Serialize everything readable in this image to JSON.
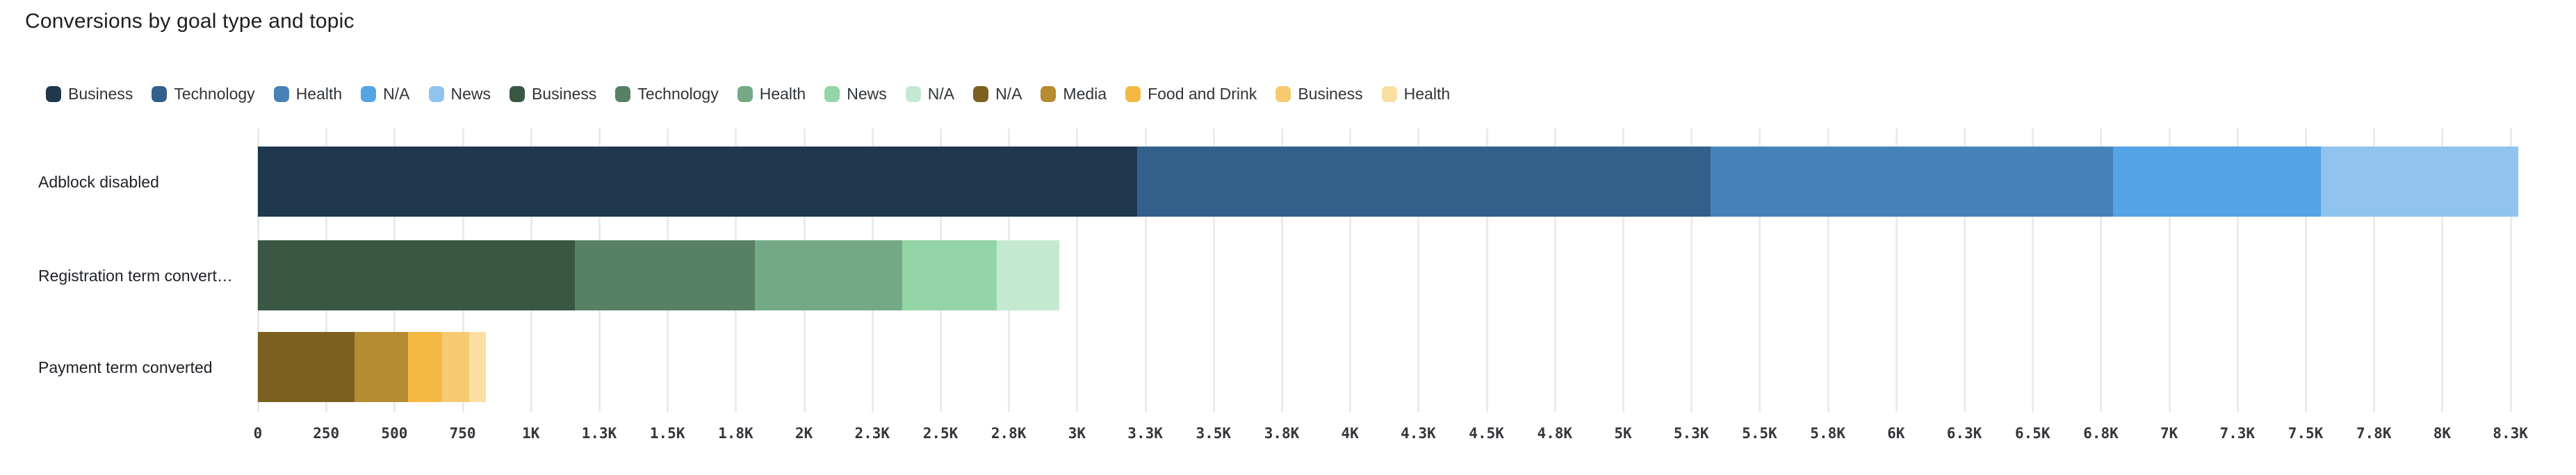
{
  "title": "Conversions by goal type and topic",
  "legend": [
    {
      "label": "Business",
      "color": "#1F384E"
    },
    {
      "label": "Technology",
      "color": "#33608A"
    },
    {
      "label": "Health",
      "color": "#4682B8"
    },
    {
      "label": "N/A",
      "color": "#55A4E6"
    },
    {
      "label": "News",
      "color": "#90C4EF"
    },
    {
      "label": "Business",
      "color": "#3A5744"
    },
    {
      "label": "Technology",
      "color": "#588065"
    },
    {
      "label": "Health",
      "color": "#73AA85"
    },
    {
      "label": "News",
      "color": "#94D5A8"
    },
    {
      "label": "N/A",
      "color": "#C5E8D1"
    },
    {
      "label": "N/A",
      "color": "#7B6020"
    },
    {
      "label": "Media",
      "color": "#B68C33"
    },
    {
      "label": "Food and Drink",
      "color": "#F4B843"
    },
    {
      "label": "Business",
      "color": "#F7CA71"
    },
    {
      "label": "Health",
      "color": "#FADFA0"
    }
  ],
  "chart_data": {
    "type": "bar",
    "orientation": "horizontal",
    "stacked": true,
    "title": "Conversions by goal type and topic",
    "categories": [
      "Adblock disabled",
      "Registration term convert…",
      "Payment term converted"
    ],
    "rows": [
      {
        "label": "Adblock disabled",
        "segments": [
          {
            "topic": "Business",
            "value": 3220,
            "color": "#1F384E"
          },
          {
            "topic": "Technology",
            "value": 2100,
            "color": "#33608A"
          },
          {
            "topic": "Health",
            "value": 1475,
            "color": "#4682B8"
          },
          {
            "topic": "N/A",
            "value": 760,
            "color": "#55A4E6"
          },
          {
            "topic": "News",
            "value": 725,
            "color": "#90C4EF"
          }
        ]
      },
      {
        "label": "Registration term convert…",
        "segments": [
          {
            "topic": "Business",
            "value": 1160,
            "color": "#3A5744"
          },
          {
            "topic": "Technology",
            "value": 660,
            "color": "#588065"
          },
          {
            "topic": "Health",
            "value": 540,
            "color": "#73AA85"
          },
          {
            "topic": "News",
            "value": 345,
            "color": "#94D5A8"
          },
          {
            "topic": "N/A",
            "value": 230,
            "color": "#C5E8D1"
          }
        ]
      },
      {
        "label": "Payment term converted",
        "segments": [
          {
            "topic": "N/A",
            "value": 355,
            "color": "#7B6020"
          },
          {
            "topic": "Media",
            "value": 195,
            "color": "#B68C33"
          },
          {
            "topic": "Food and Drink",
            "value": 125,
            "color": "#F4B843"
          },
          {
            "topic": "Business",
            "value": 100,
            "color": "#F7CA71"
          },
          {
            "topic": "Health",
            "value": 60,
            "color": "#FADFA0"
          }
        ]
      }
    ],
    "xlabel": "",
    "ylabel": "",
    "axis": {
      "min": 0,
      "max": 8250,
      "step": 250,
      "tick_labels": [
        "0",
        "250",
        "500",
        "750",
        "1K",
        "1.3K",
        "1.5K",
        "1.8K",
        "2K",
        "2.3K",
        "2.5K",
        "2.8K",
        "3K",
        "3.3K",
        "3.5K",
        "3.8K",
        "4K",
        "4.3K",
        "4.5K",
        "4.8K",
        "5K",
        "5.3K",
        "5.5K",
        "5.8K",
        "6K",
        "6.3K",
        "6.5K",
        "6.8K",
        "7K",
        "7.3K",
        "7.5K",
        "7.8K",
        "8K",
        "8.3K"
      ]
    },
    "grid": true,
    "legend_position": "top"
  }
}
